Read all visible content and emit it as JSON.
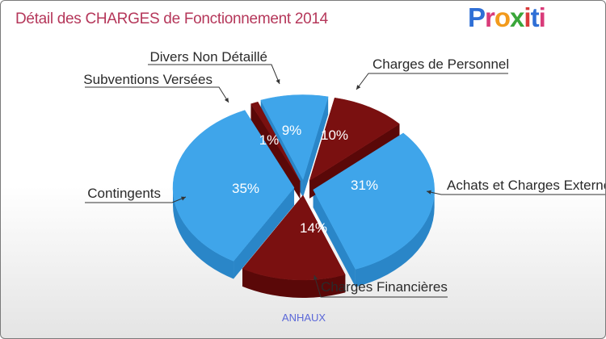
{
  "title": "Détail des CHARGES de Fonctionnement 2014",
  "logo": {
    "letters": [
      "P",
      "r",
      "o",
      "x",
      "i",
      "t",
      "i"
    ],
    "colors": [
      "#2f6fd6",
      "#d93b7a",
      "#f29a1c",
      "#3aa63a",
      "#d93b3b",
      "#2f6fd6",
      "#d93b7a"
    ]
  },
  "footer": "ANHAUX",
  "colors": {
    "blue": "#3fa5ea",
    "blue_dark": "#2a86c8",
    "red": "#7a1010",
    "red_dark": "#5a0808",
    "title": "#b5375a"
  },
  "chart_data": {
    "type": "pie",
    "title": "Détail des CHARGES de Fonctionnement 2014",
    "subtitle": "ANHAUX",
    "slices": [
      {
        "label": "Charges de Personnel",
        "value": 10,
        "display": "10%",
        "color": "#7a1010"
      },
      {
        "label": "Achats et Charges Externes",
        "value": 31,
        "display": "31%",
        "color": "#3fa5ea"
      },
      {
        "label": "Charges Financières",
        "value": 14,
        "display": "14%",
        "color": "#7a1010"
      },
      {
        "label": "Contingents",
        "value": 35,
        "display": "35%",
        "color": "#3fa5ea"
      },
      {
        "label": "Subventions Versées",
        "value": 1,
        "display": "1%",
        "color": "#7a1010"
      },
      {
        "label": "Divers Non Détaillé",
        "value": 9,
        "display": "9%",
        "color": "#3fa5ea"
      }
    ]
  }
}
